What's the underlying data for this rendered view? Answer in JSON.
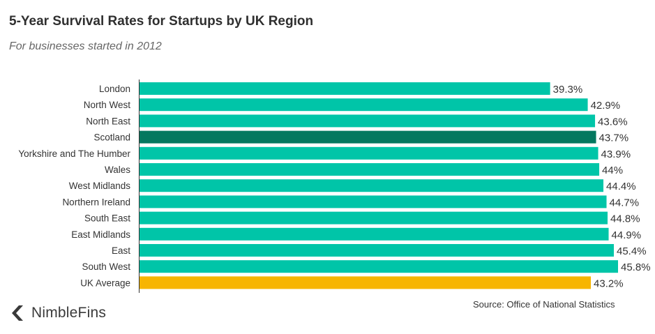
{
  "title": "5-Year Survival Rates for Startups by UK Region",
  "subtitle": "For businesses started in 2012",
  "source": "Source: Office of National Statistics",
  "brand": "NimbleFins",
  "colors": {
    "default": "#00c5a8",
    "highlight": "#04785f",
    "average": "#f7b500",
    "axis": "#333333"
  },
  "chart_data": {
    "type": "bar",
    "orientation": "horizontal",
    "title": "5-Year Survival Rates for Startups by UK Region",
    "subtitle": "For businesses started in 2012",
    "categories": [
      "London",
      "North West",
      "North East",
      "Scotland",
      "Yorkshire and The Humber",
      "Wales",
      "West Midlands",
      "Northern Ireland",
      "South East",
      "East Midlands",
      "East",
      "South West",
      "UK Average"
    ],
    "values": [
      39.3,
      42.9,
      43.6,
      43.7,
      43.9,
      44,
      44.4,
      44.7,
      44.8,
      44.9,
      45.4,
      45.8,
      43.2
    ],
    "value_labels": [
      "39.3%",
      "42.9%",
      "43.6%",
      "43.7%",
      "43.9%",
      "44%",
      "44.4%",
      "44.7%",
      "44.8%",
      "44.9%",
      "45.4%",
      "45.8%",
      "43.2%"
    ],
    "highlight": {
      "Scotland": "highlight",
      "UK Average": "average"
    },
    "xlim": [
      0,
      45.8
    ],
    "grid": false,
    "legend": "none"
  }
}
